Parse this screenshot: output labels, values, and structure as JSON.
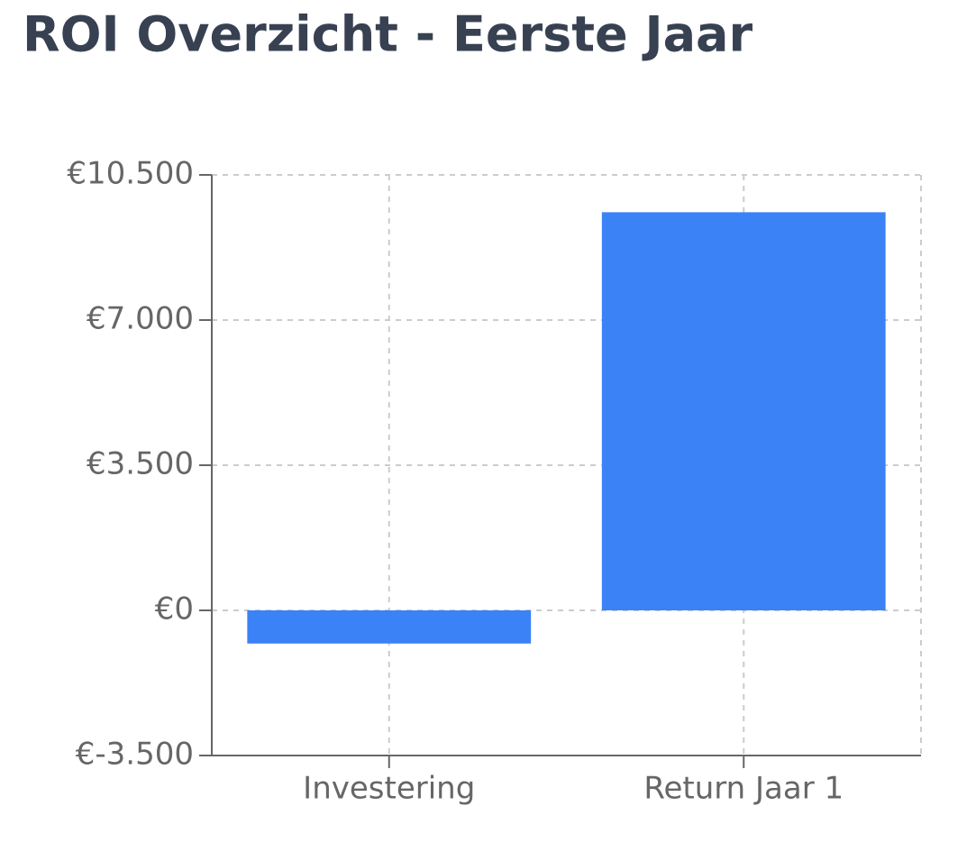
{
  "chart_data": {
    "type": "bar",
    "title": "ROI Overzicht - Eerste Jaar",
    "categories": [
      "Investering",
      "Return Jaar 1"
    ],
    "values": [
      -800,
      9600
    ],
    "color": "#3b82f6",
    "ylim": [
      -3500,
      10500
    ],
    "yticks": [
      {
        "value": -3500,
        "label": "€-3.500"
      },
      {
        "value": 0,
        "label": "€0"
      },
      {
        "value": 3500,
        "label": "€3.500"
      },
      {
        "value": 7000,
        "label": "€7.000"
      },
      {
        "value": 10500,
        "label": "€10.500"
      }
    ],
    "grid": true
  }
}
